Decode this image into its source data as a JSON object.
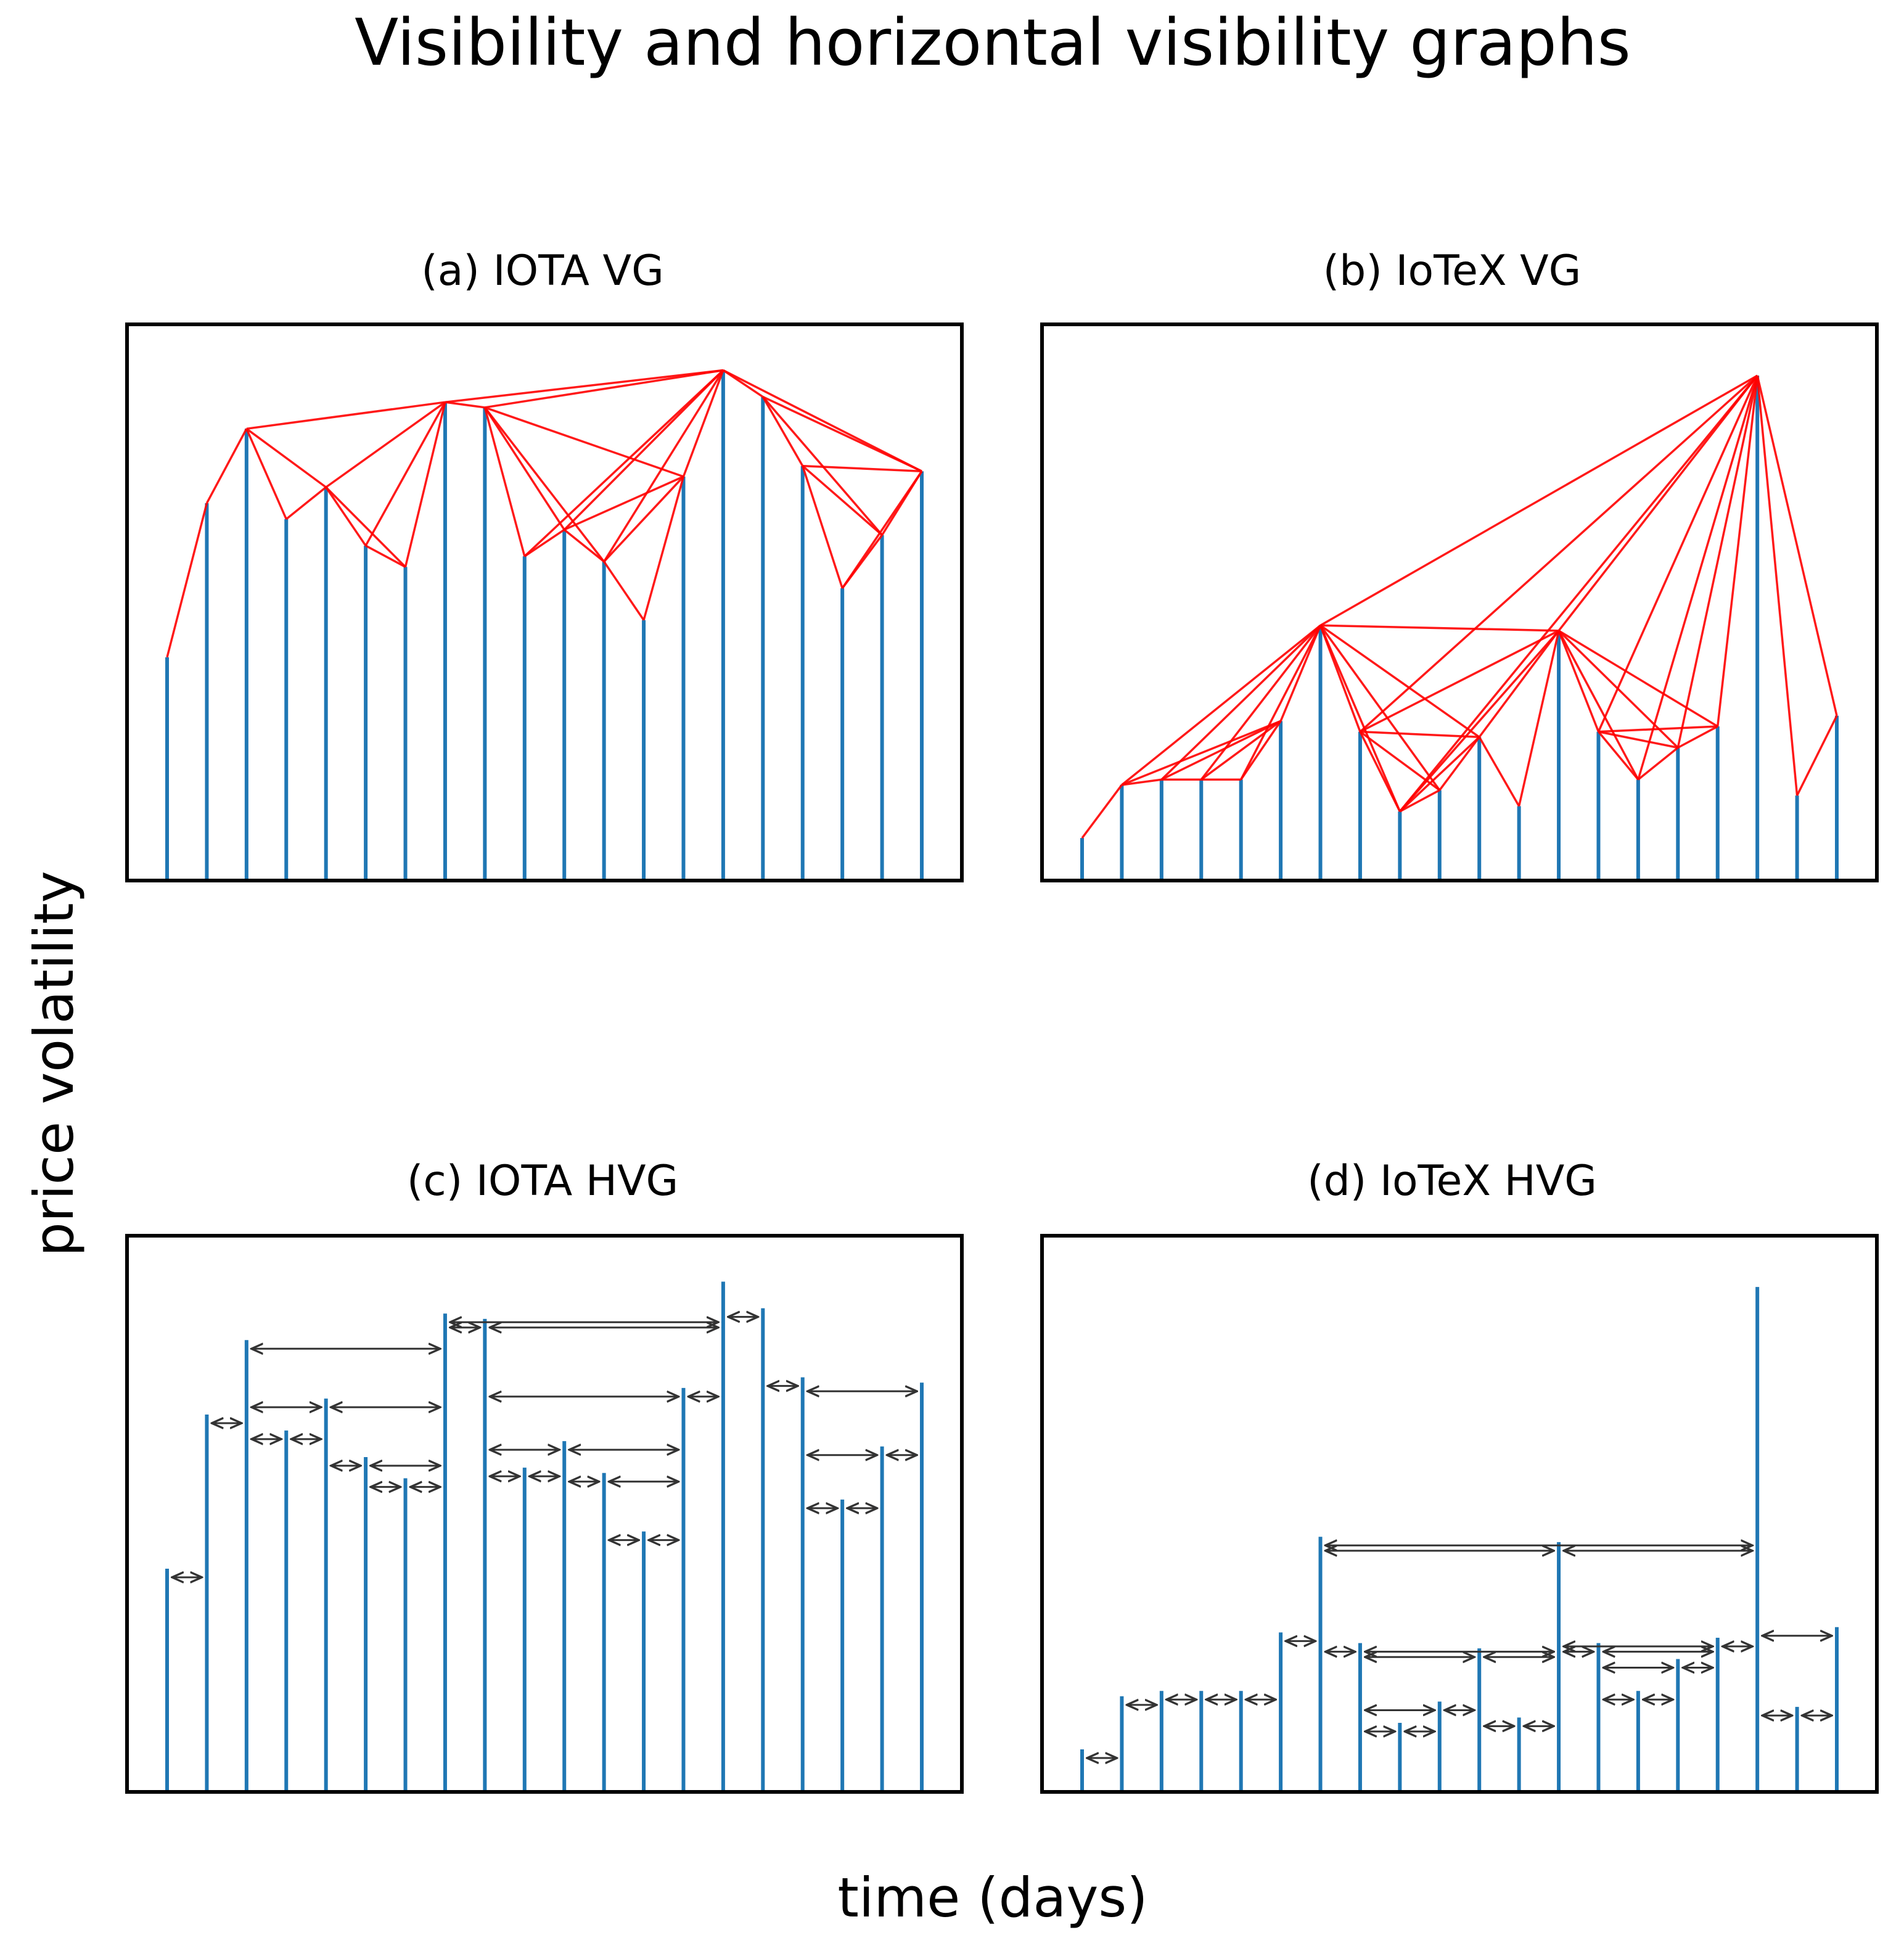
{
  "title": "Visibility and horizontal visibility graphs",
  "xlabel": "time (days)",
  "ylabel": "price volatility",
  "colors": {
    "bar": "#1f77b4",
    "vg_edge": "#ff0000",
    "hvg_arrow": "#333333",
    "frame": "#000000"
  },
  "series": {
    "iota": [
      0.42,
      0.71,
      0.85,
      0.68,
      0.74,
      0.63,
      0.59,
      0.9,
      0.89,
      0.61,
      0.66,
      0.6,
      0.49,
      0.76,
      0.96,
      0.91,
      0.78,
      0.55,
      0.65,
      0.77
    ],
    "iotex": [
      0.08,
      0.18,
      0.19,
      0.19,
      0.19,
      0.3,
      0.48,
      0.28,
      0.13,
      0.17,
      0.27,
      0.14,
      0.47,
      0.28,
      0.19,
      0.25,
      0.29,
      0.95,
      0.16,
      0.31
    ]
  },
  "chart_data": [
    {
      "type": "bar",
      "panel": "a",
      "title": "(a) IOTA VG",
      "series_key": "iota",
      "graph": "visibility"
    },
    {
      "type": "bar",
      "panel": "b",
      "title": "(b) IoTeX VG",
      "series_key": "iotex",
      "graph": "visibility"
    },
    {
      "type": "bar",
      "panel": "c",
      "title": "(c) IOTA HVG",
      "series_key": "iota",
      "graph": "horizontal-visibility"
    },
    {
      "type": "bar",
      "panel": "d",
      "title": "(d) IoTeX HVG",
      "series_key": "iotex",
      "graph": "horizontal-visibility"
    }
  ]
}
